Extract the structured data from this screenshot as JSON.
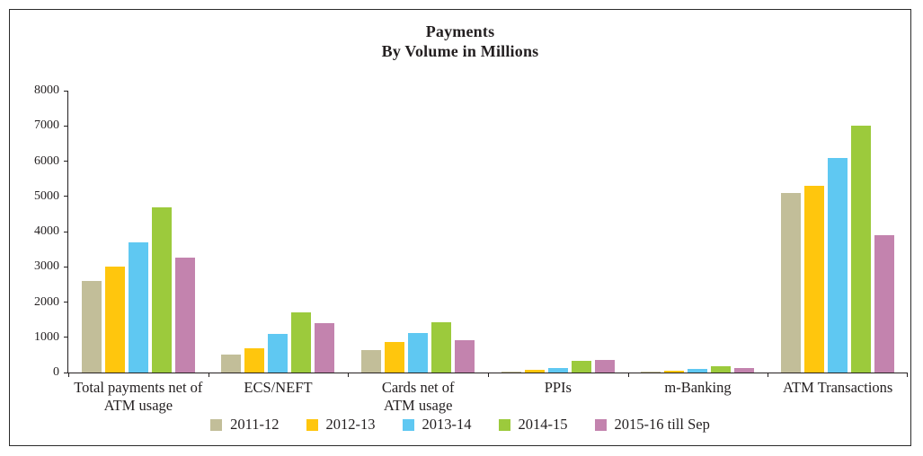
{
  "chart_data": {
    "type": "bar",
    "title": "Payments",
    "subtitle": "By Volume in Millions",
    "ylim": [
      0,
      8000
    ],
    "yticks": [
      0,
      1000,
      2000,
      3000,
      4000,
      5000,
      6000,
      7000,
      8000
    ],
    "grid": false,
    "legend_position": "bottom",
    "axis_color": "#231f20",
    "categories": [
      {
        "label": "Total payments net of ATM usage",
        "lines": [
          "Total payments net of",
          "ATM usage"
        ]
      },
      {
        "label": "ECS/NEFT",
        "lines": [
          "ECS/NEFT"
        ]
      },
      {
        "label": "Cards net of ATM usage",
        "lines": [
          "Cards net of",
          "ATM usage"
        ]
      },
      {
        "label": "PPIs",
        "lines": [
          "PPIs"
        ]
      },
      {
        "label": "m-Banking",
        "lines": [
          "m-Banking"
        ]
      },
      {
        "label": "ATM Transactions",
        "lines": [
          "ATM Transactions"
        ]
      }
    ],
    "series": [
      {
        "name": "2011-12",
        "color": "#c2be99",
        "values": [
          2600,
          500,
          650,
          30,
          30,
          5100
        ]
      },
      {
        "name": "2012-13",
        "color": "#ffc60d",
        "values": [
          3000,
          700,
          870,
          70,
          60,
          5300
        ]
      },
      {
        "name": "2013-14",
        "color": "#5fc8f2",
        "values": [
          3700,
          1100,
          1130,
          130,
          100,
          6100
        ]
      },
      {
        "name": "2014-15",
        "color": "#9cca3c",
        "values": [
          4700,
          1700,
          1420,
          320,
          190,
          7000
        ]
      },
      {
        "name": "2015-16 till Sep",
        "color": "#c383ae",
        "values": [
          3250,
          1400,
          910,
          350,
          140,
          3900
        ]
      }
    ]
  }
}
